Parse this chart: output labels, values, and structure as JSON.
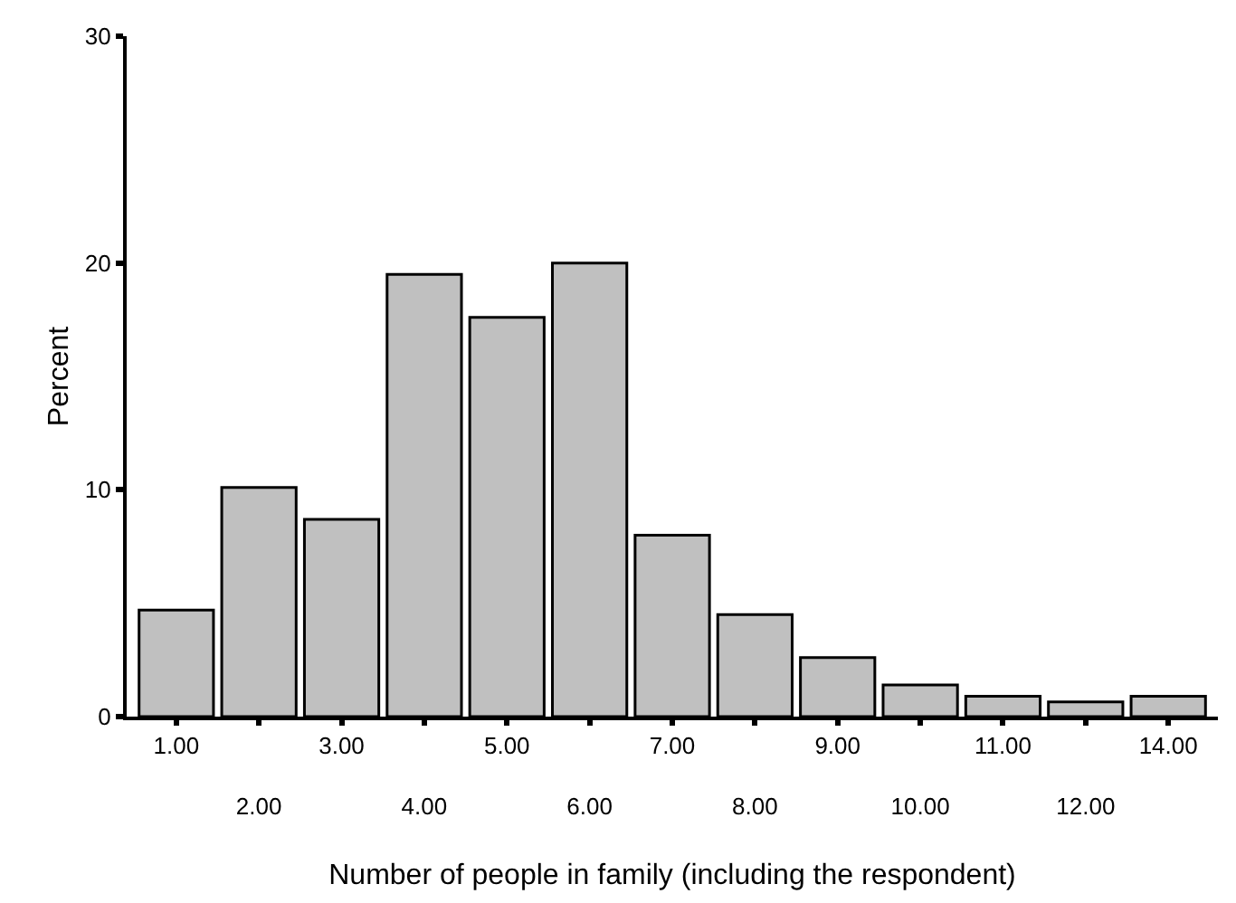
{
  "chart_data": {
    "type": "bar",
    "xlabel": "Number of people in family (including the respondent)",
    "ylabel": "Percent",
    "categories": [
      "1.00",
      "2.00",
      "3.00",
      "4.00",
      "5.00",
      "6.00",
      "7.00",
      "8.00",
      "9.00",
      "10.00",
      "11.00",
      "12.00",
      "14.00"
    ],
    "values": [
      4.7,
      10.1,
      8.7,
      19.5,
      17.6,
      20.0,
      8.0,
      4.5,
      2.6,
      1.4,
      0.9,
      0.65,
      0.9
    ],
    "color": "#c0c0c0",
    "ylim": [
      0,
      30
    ],
    "yticks": [
      0,
      10,
      20,
      30
    ]
  }
}
